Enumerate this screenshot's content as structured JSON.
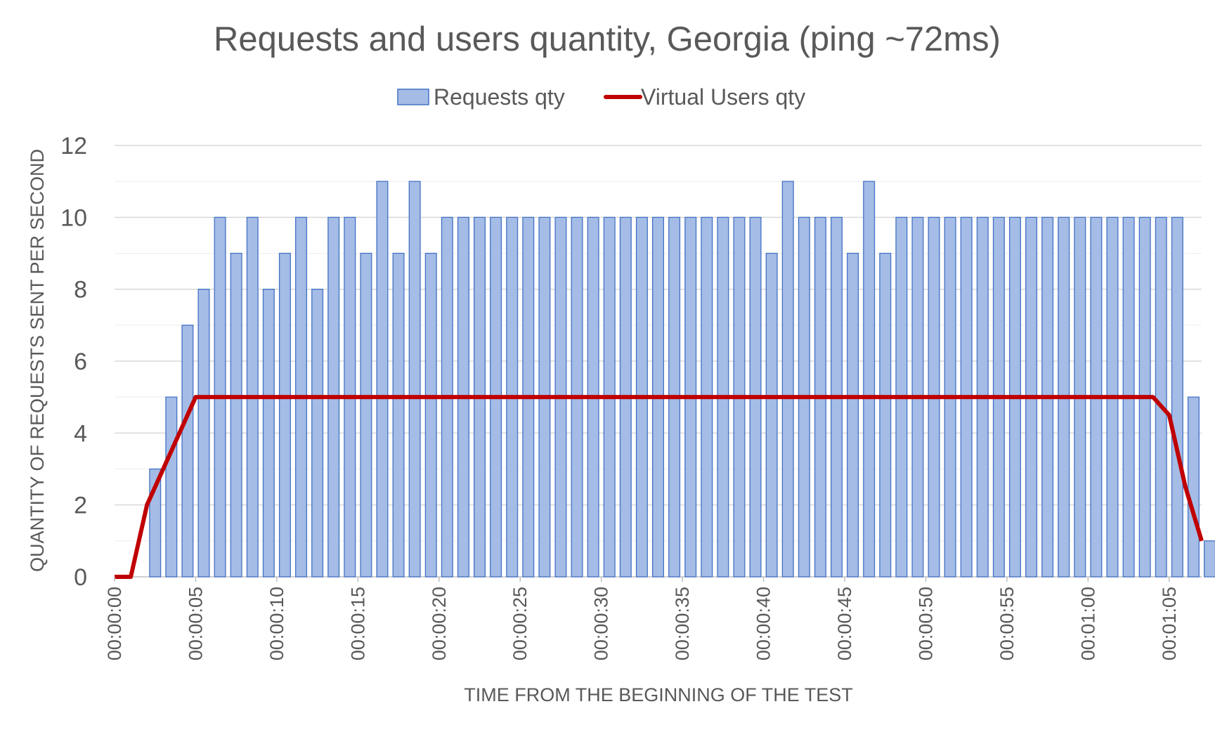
{
  "chart_data": {
    "type": "bar",
    "title": "Requests and users quantity, Georgia (ping ~72ms)",
    "xlabel": "TIME FROM THE BEGINNING OF THE TEST",
    "ylabel": "QUANTITY OF REQUESTS SENT PER SECOND",
    "ylim": [
      0,
      12
    ],
    "yticks": [
      0,
      2,
      4,
      6,
      8,
      10,
      12
    ],
    "x_unit": "seconds",
    "x_start": 0,
    "x_end": 67,
    "xtick_labels": [
      "00:00:00",
      "00:00:05",
      "00:00:10",
      "00:00:15",
      "00:00:20",
      "00:00:25",
      "00:00:30",
      "00:00:35",
      "00:00:40",
      "00:00:45",
      "00:00:50",
      "00:00:55",
      "00:01:00",
      "00:01:05"
    ],
    "xtick_values": [
      0,
      5,
      10,
      15,
      20,
      25,
      30,
      35,
      40,
      45,
      50,
      55,
      60,
      65
    ],
    "grid": true,
    "legend_position": "top",
    "series": [
      {
        "name": "Requests qty",
        "kind": "bar",
        "color": "#a4bce6",
        "edge_color": "#4472c4",
        "x": [
          2,
          3,
          4,
          5,
          6,
          7,
          8,
          9,
          10,
          11,
          12,
          13,
          14,
          15,
          16,
          17,
          18,
          19,
          20,
          21,
          22,
          23,
          24,
          25,
          26,
          27,
          28,
          29,
          30,
          31,
          32,
          33,
          34,
          35,
          36,
          37,
          38,
          39,
          40,
          41,
          42,
          43,
          44,
          45,
          46,
          47,
          48,
          49,
          50,
          51,
          52,
          53,
          54,
          55,
          56,
          57,
          58,
          59,
          60,
          61,
          62,
          63,
          64,
          65,
          66,
          67
        ],
        "values": [
          3,
          5,
          7,
          8,
          10,
          9,
          10,
          8,
          9,
          10,
          8,
          10,
          10,
          9,
          11,
          9,
          11,
          9,
          10,
          10,
          10,
          10,
          10,
          10,
          10,
          10,
          10,
          10,
          10,
          10,
          10,
          10,
          10,
          10,
          10,
          10,
          10,
          10,
          9,
          11,
          10,
          10,
          10,
          9,
          11,
          9,
          10,
          10,
          10,
          10,
          10,
          10,
          10,
          10,
          10,
          10,
          10,
          10,
          10,
          10,
          10,
          10,
          10,
          10,
          5,
          1
        ]
      },
      {
        "name": "Virtual Users qty",
        "kind": "line",
        "color": "#c00000",
        "x": [
          0,
          1,
          2,
          3,
          4,
          5,
          64,
          65,
          66,
          67
        ],
        "values": [
          0,
          0,
          2,
          3,
          4,
          5,
          5,
          4.5,
          2.5,
          1
        ]
      }
    ]
  }
}
